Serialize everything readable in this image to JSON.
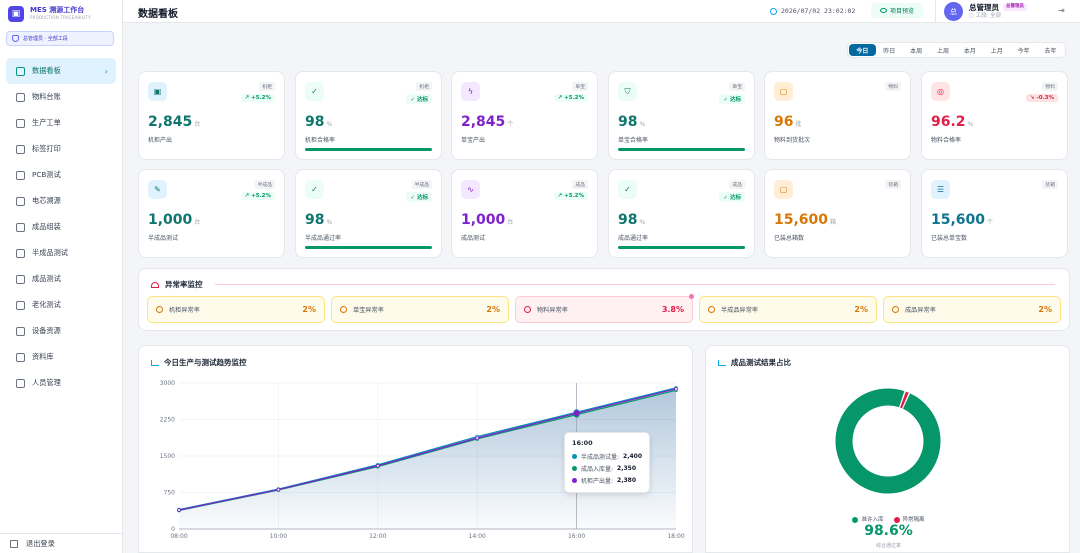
{
  "app": {
    "title": "MES 溯源工作台",
    "subtitle": "PRODUCTION TRACEABILITY",
    "role_badge": "总管理员 · 全部工段"
  },
  "nav": [
    {
      "label": "数据看板",
      "icon": "dashboard-icon",
      "active": true
    },
    {
      "label": "物料台账",
      "icon": "clipboard-icon"
    },
    {
      "label": "生产工单",
      "icon": "clipboard-check-icon"
    },
    {
      "label": "标签打印",
      "icon": "printer-icon"
    },
    {
      "label": "PCB测试",
      "icon": "flask-icon"
    },
    {
      "label": "电芯溯源",
      "icon": "signal-icon"
    },
    {
      "label": "成品组装",
      "icon": "wrench-icon"
    },
    {
      "label": "半成品测试",
      "icon": "pen-icon"
    },
    {
      "label": "成品测试",
      "icon": "bar-chart-icon"
    },
    {
      "label": "老化测试",
      "icon": "thermometer-icon"
    },
    {
      "label": "设备资源",
      "icon": "truck-icon"
    },
    {
      "label": "资料库",
      "icon": "book-icon"
    },
    {
      "label": "人员管理",
      "icon": "users-icon"
    }
  ],
  "logout_label": "退出登录",
  "header": {
    "title": "数据看板",
    "datetime": "2026/07/02 23:02:02",
    "preview_label": "项目预览",
    "avatar_text": "总",
    "user_name": "总管理员",
    "user_badge": "总管理员",
    "station": "工段: 全部"
  },
  "tabs": [
    {
      "label": "今日",
      "active": true
    },
    {
      "label": "昨日"
    },
    {
      "label": "本周"
    },
    {
      "label": "上周"
    },
    {
      "label": "本月"
    },
    {
      "label": "上月"
    },
    {
      "label": "今年"
    },
    {
      "label": "去年"
    }
  ],
  "cards": [
    {
      "tag": "机柜",
      "trend": "↗ +5.2%",
      "trend_dir": "up",
      "value": "2,845",
      "unit": "台",
      "label": "机柜产出",
      "color": "#0f766e",
      "icon": "chip-icon",
      "icon_bg": "#e0f2fe",
      "bar": false
    },
    {
      "tag": "机柜",
      "trend": "✓ 达标",
      "trend_dir": "up",
      "value": "98",
      "unit": "%",
      "label": "机柜合格率",
      "color": "#0f766e",
      "icon": "check-circle-icon",
      "icon_bg": "#ecfdf5",
      "bar": true
    },
    {
      "tag": "单宝",
      "trend": "↗ +5.2%",
      "trend_dir": "up",
      "value": "2,845",
      "unit": "个",
      "label": "单宝产出",
      "color": "#7e22ce",
      "icon": "bolt-icon",
      "icon_bg": "#f3e8ff",
      "bar": false
    },
    {
      "tag": "单宝",
      "trend": "✓ 达标",
      "trend_dir": "up",
      "value": "98",
      "unit": "%",
      "label": "单宝合格率",
      "color": "#0f766e",
      "icon": "shield-icon",
      "icon_bg": "#ecfdf5",
      "bar": true
    },
    {
      "tag": "物料",
      "trend": "",
      "trend_dir": "",
      "value": "96",
      "unit": "批",
      "label": "物料到货批次",
      "color": "#d97706",
      "icon": "box-icon",
      "icon_bg": "#ffedd5",
      "bar": false
    },
    {
      "tag": "物料",
      "trend": "↘ -0.3%",
      "trend_dir": "dn",
      "value": "96.2",
      "unit": "%",
      "label": "物料合格率",
      "color": "#e11d48",
      "icon": "target-icon",
      "icon_bg": "#ffe4e6",
      "bar": false
    },
    {
      "tag": "半成品",
      "trend": "↗ +5.2%",
      "trend_dir": "up",
      "value": "1,000",
      "unit": "台",
      "label": "半成品测试",
      "color": "#0f766e",
      "icon": "pen-icon",
      "icon_bg": "#e0f2fe",
      "bar": false
    },
    {
      "tag": "半成品",
      "trend": "✓ 达标",
      "trend_dir": "up",
      "value": "98",
      "unit": "%",
      "label": "半成品通过率",
      "color": "#0f766e",
      "icon": "check-circle-icon",
      "icon_bg": "#ecfdf5",
      "bar": true
    },
    {
      "tag": "成品",
      "trend": "↗ +5.2%",
      "trend_dir": "up",
      "value": "1,000",
      "unit": "台",
      "label": "成品测试",
      "color": "#7e22ce",
      "icon": "activity-icon",
      "icon_bg": "#f3e8ff",
      "bar": false
    },
    {
      "tag": "成品",
      "trend": "✓ 达标",
      "trend_dir": "up",
      "value": "98",
      "unit": "%",
      "label": "成品通过率",
      "color": "#0f766e",
      "icon": "check-circle-icon",
      "icon_bg": "#ecfdf5",
      "bar": true
    },
    {
      "tag": "装箱",
      "trend": "",
      "trend_dir": "",
      "value": "15,600",
      "unit": "箱",
      "label": "已装总箱数",
      "color": "#d97706",
      "icon": "box-icon",
      "icon_bg": "#ffedd5",
      "bar": false
    },
    {
      "tag": "装箱",
      "trend": "",
      "trend_dir": "",
      "value": "15,600",
      "unit": "个",
      "label": "已装总单宝数",
      "color": "#0e7490",
      "icon": "database-icon",
      "icon_bg": "#e0f2fe",
      "bar": false
    }
  ],
  "anomaly": {
    "title": "异常率监控",
    "items": [
      {
        "label": "机柜异常率",
        "value": "2%",
        "level": "warn"
      },
      {
        "label": "单宝异常率",
        "value": "2%",
        "level": "warn"
      },
      {
        "label": "物料异常率",
        "value": "3.8%",
        "level": "err"
      },
      {
        "label": "半成品异常率",
        "value": "2%",
        "level": "warn"
      },
      {
        "label": "成品异常率",
        "value": "2%",
        "level": "warn"
      }
    ]
  },
  "trend_chart": {
    "title": "今日生产与测试趋势监控",
    "tooltip": {
      "time": "16:00",
      "rows": [
        {
          "label": "半成品测试量:",
          "value": "2,400",
          "color": "#0891b2"
        },
        {
          "label": "成品入库量:",
          "value": "2,350",
          "color": "#059669"
        },
        {
          "label": "机柜产出量:",
          "value": "2,380",
          "color": "#7e22ce"
        }
      ]
    }
  },
  "chart_data": [
    {
      "type": "line",
      "x": [
        "08:00",
        "10:00",
        "12:00",
        "14:00",
        "16:00",
        "18:00"
      ],
      "x_ticks": [
        "08:00",
        "10:00",
        "12:00",
        "14:00",
        "16:00",
        "18:00"
      ],
      "y_ticks": [
        "0",
        "750",
        "1500",
        "2250",
        "3000"
      ],
      "ylim": [
        0,
        3000
      ],
      "series": [
        {
          "name": "半成品测试量",
          "color": "#0891b2",
          "values": [
            400,
            820,
            1320,
            1900,
            2400,
            2900
          ]
        },
        {
          "name": "成品入库量",
          "color": "#059669",
          "values": [
            380,
            800,
            1280,
            1850,
            2350,
            2850
          ]
        },
        {
          "name": "机柜产出量",
          "color": "#7e22ce",
          "values": [
            390,
            810,
            1300,
            1870,
            2380,
            2880
          ]
        }
      ],
      "grid": true,
      "highlight_x": "16:00"
    },
    {
      "type": "pie",
      "title": "成品测试结果占比",
      "categories": [
        "准许入库",
        "异常隔离"
      ],
      "values": [
        98.6,
        1.4
      ],
      "colors": [
        "#059669",
        "#e11d48"
      ],
      "center_value": "98.6%",
      "center_label": "综合通过率"
    }
  ]
}
